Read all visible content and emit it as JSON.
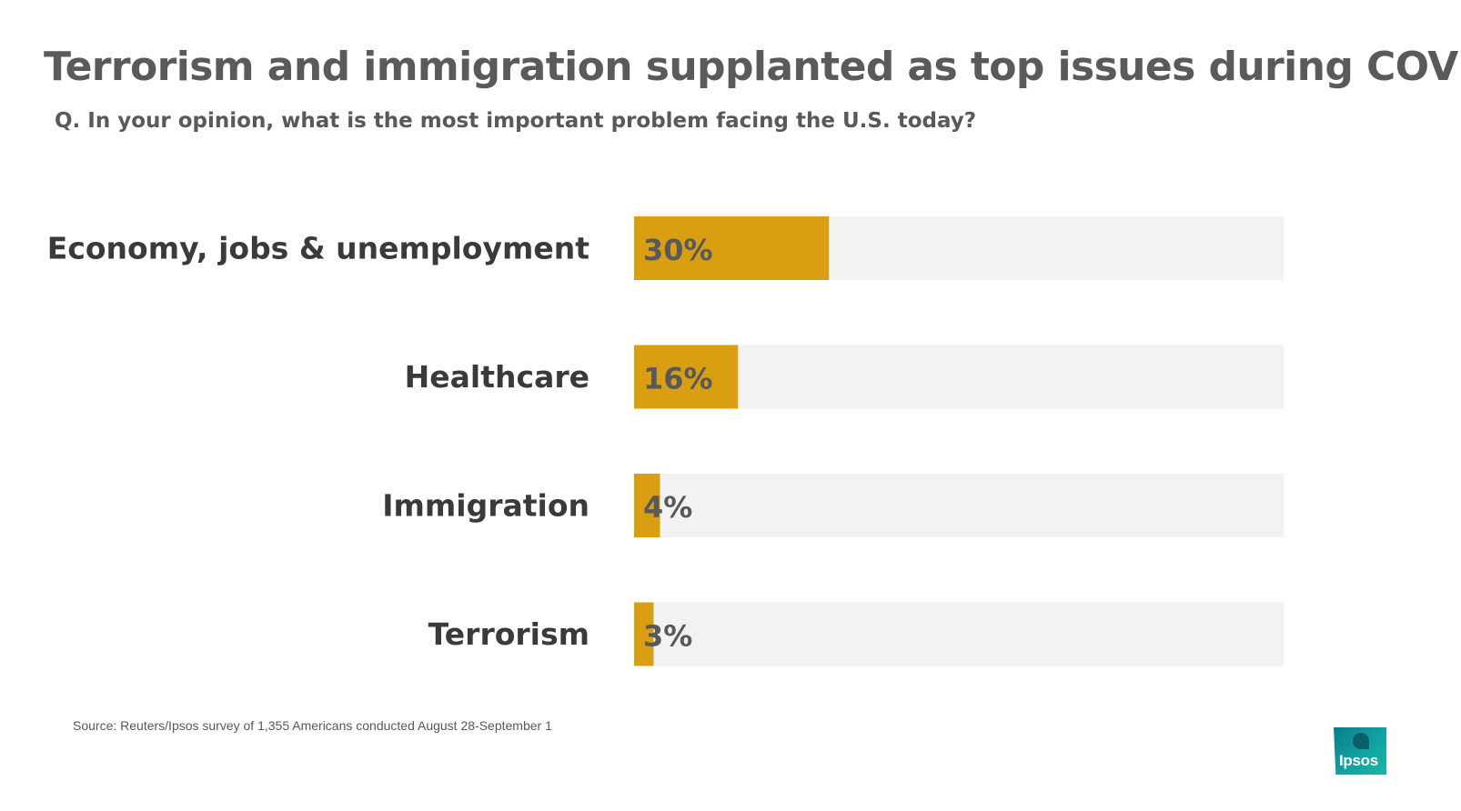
{
  "chart_data": {
    "type": "bar",
    "orientation": "horizontal",
    "title": "Terrorism and immigration supplanted as top issues during COVID",
    "subtitle": "Q. In your opinion, what is the most important problem facing the U.S. today?",
    "categories": [
      "Economy, jobs & unemployment",
      "Healthcare",
      "Immigration",
      "Terrorism"
    ],
    "values": [
      30,
      16,
      4,
      3
    ],
    "value_labels": [
      "30%",
      "16%",
      "4%",
      "3%"
    ],
    "xlim": [
      0,
      100
    ],
    "unit": "%",
    "bar_color": "#D99E12",
    "track_color": "#F2F2F2",
    "grid": false,
    "source": "Source: Reuters/Ipsos survey of 1,355 Americans conducted August 28-September 1"
  },
  "logo": {
    "text": "Ipsos",
    "color": "#11A3A0"
  }
}
